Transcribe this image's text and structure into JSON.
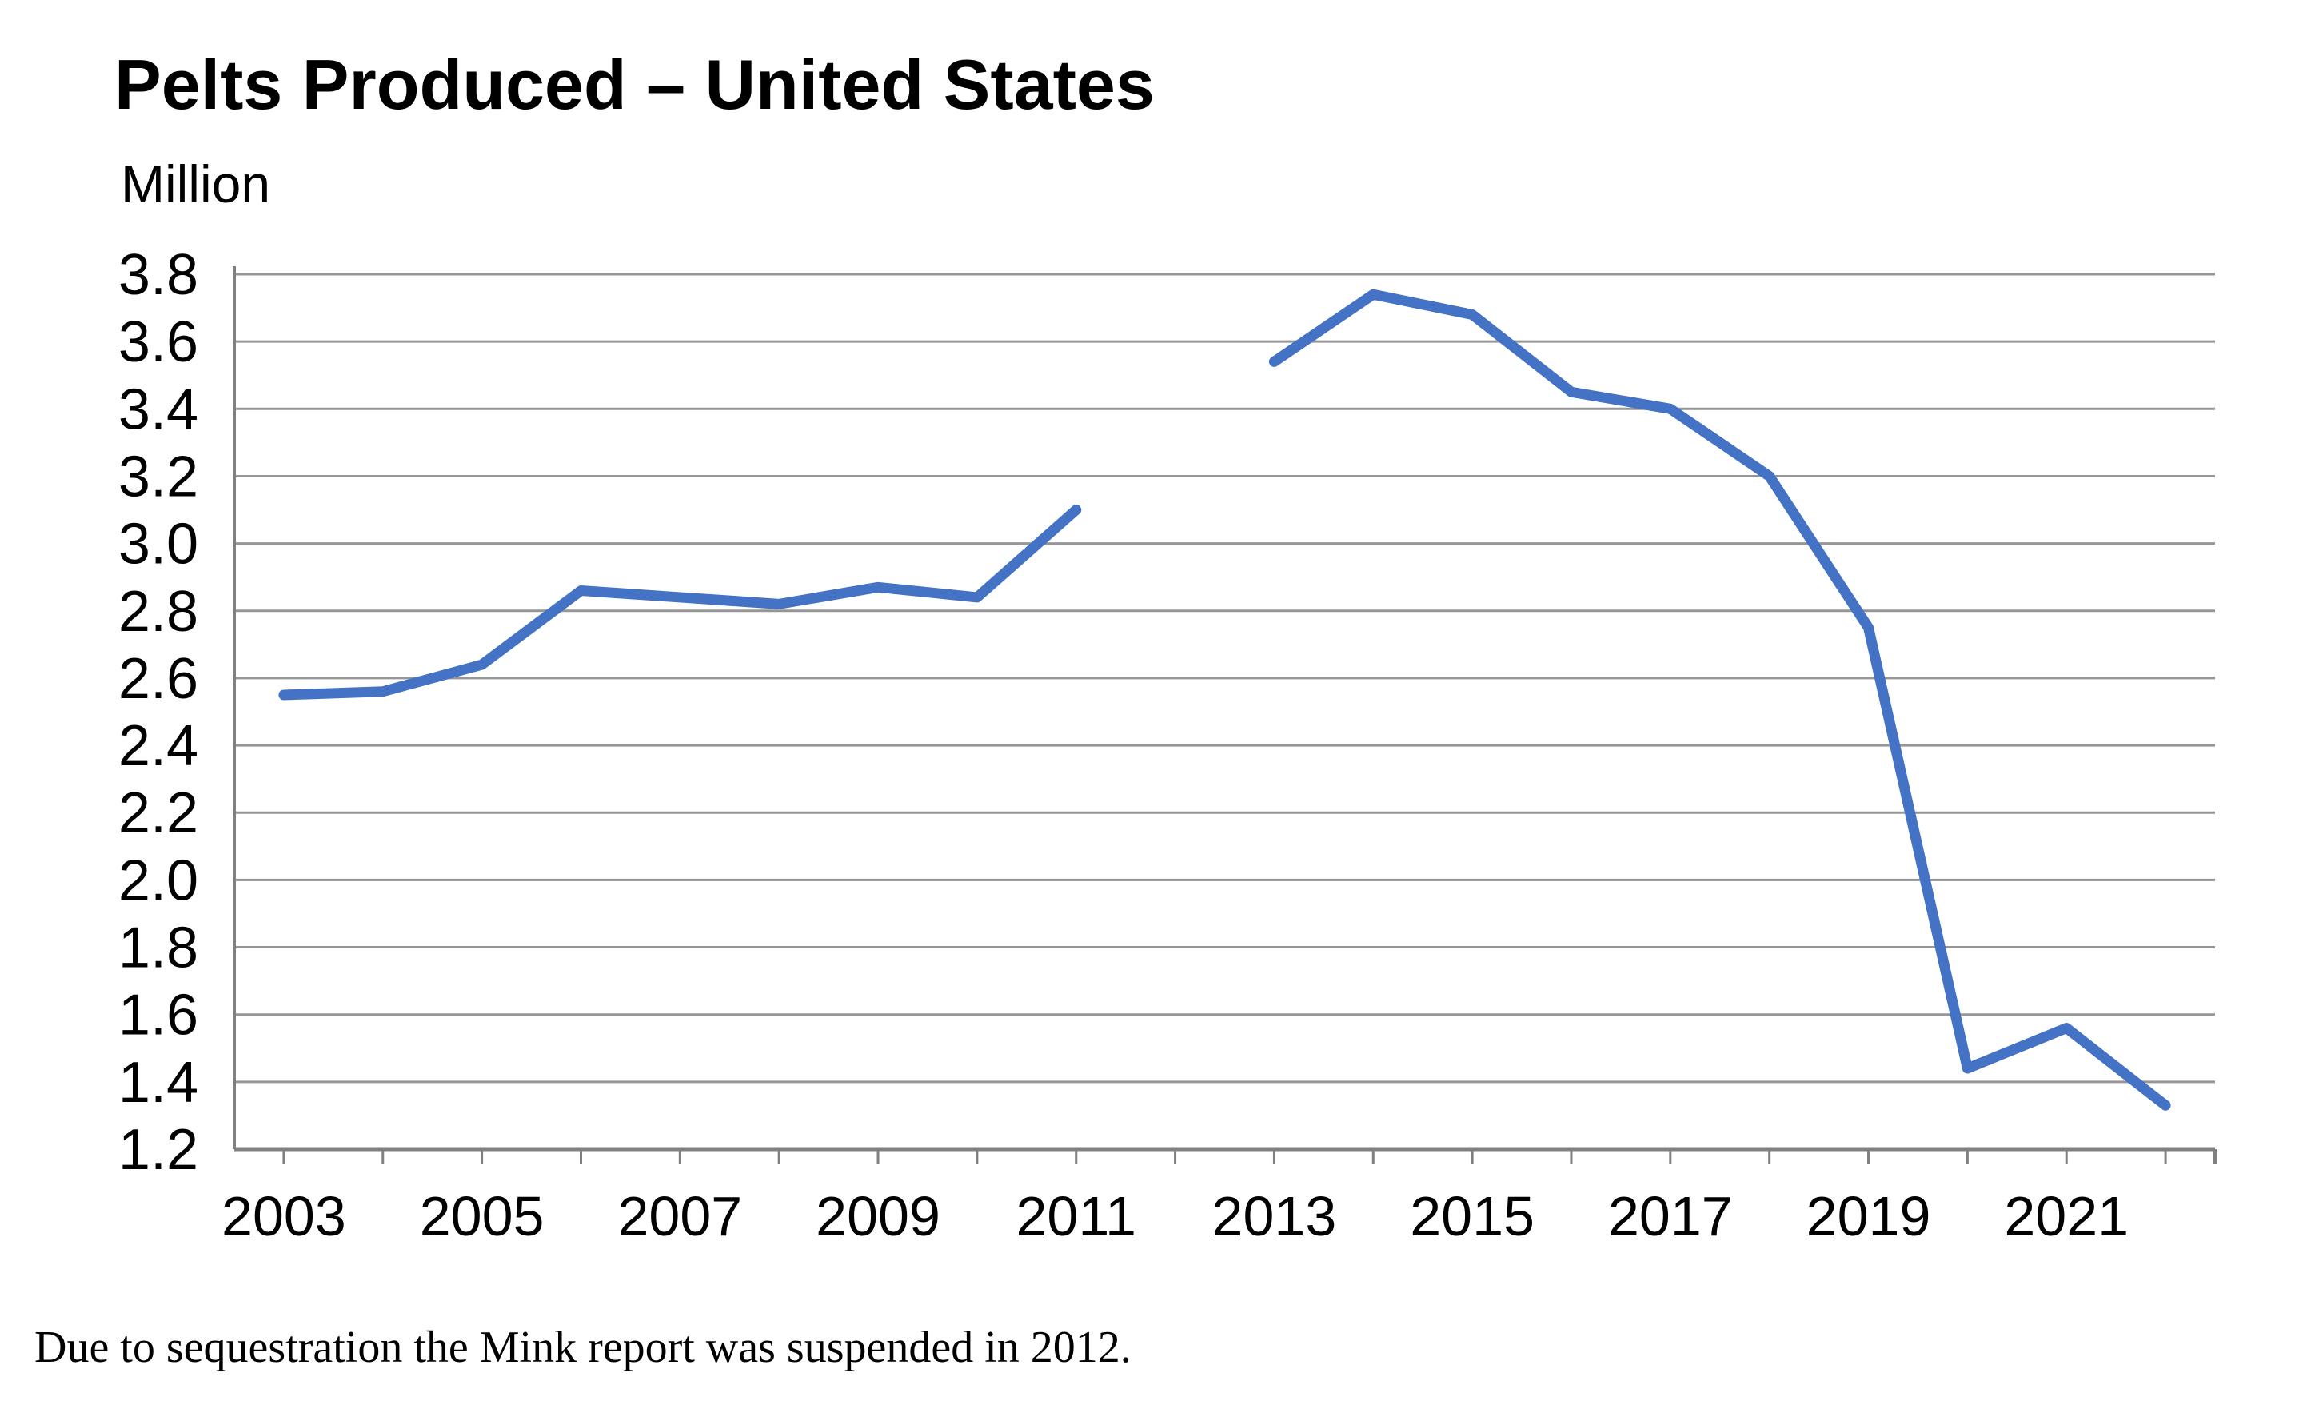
{
  "page": {
    "title": "Pelts Produced – United States",
    "unit_label": "Million",
    "note": "Due to sequestration the Mink report was suspended in 2012."
  },
  "chart_data": {
    "type": "line",
    "title": "Pelts Produced – United States",
    "ylabel": "Million",
    "xlabel": "",
    "x": [
      2003,
      2004,
      2005,
      2006,
      2007,
      2008,
      2009,
      2010,
      2011,
      2012,
      2013,
      2014,
      2015,
      2016,
      2017,
      2018,
      2019,
      2020,
      2021,
      2022
    ],
    "series": [
      {
        "name": "Pelts Produced (million)",
        "values": [
          2.55,
          2.56,
          2.64,
          2.86,
          2.84,
          2.82,
          2.87,
          2.84,
          3.1,
          null,
          3.54,
          3.74,
          3.68,
          3.45,
          3.4,
          3.2,
          2.75,
          1.44,
          1.56,
          1.33
        ]
      }
    ],
    "ylim": [
      1.2,
      3.8
    ],
    "ytick_step": 0.2,
    "x_labeled_ticks": [
      2003,
      2005,
      2007,
      2009,
      2011,
      2013,
      2015,
      2017,
      2019,
      2021
    ],
    "grid": true,
    "legend_position": "none",
    "annotations": [
      "Due to sequestration the Mink report was suspended in 2012."
    ],
    "colors": {
      "line": "#4472C4",
      "gridline": "#969696",
      "axis": "#808080",
      "text": "#000000",
      "background": "#ffffff"
    }
  }
}
